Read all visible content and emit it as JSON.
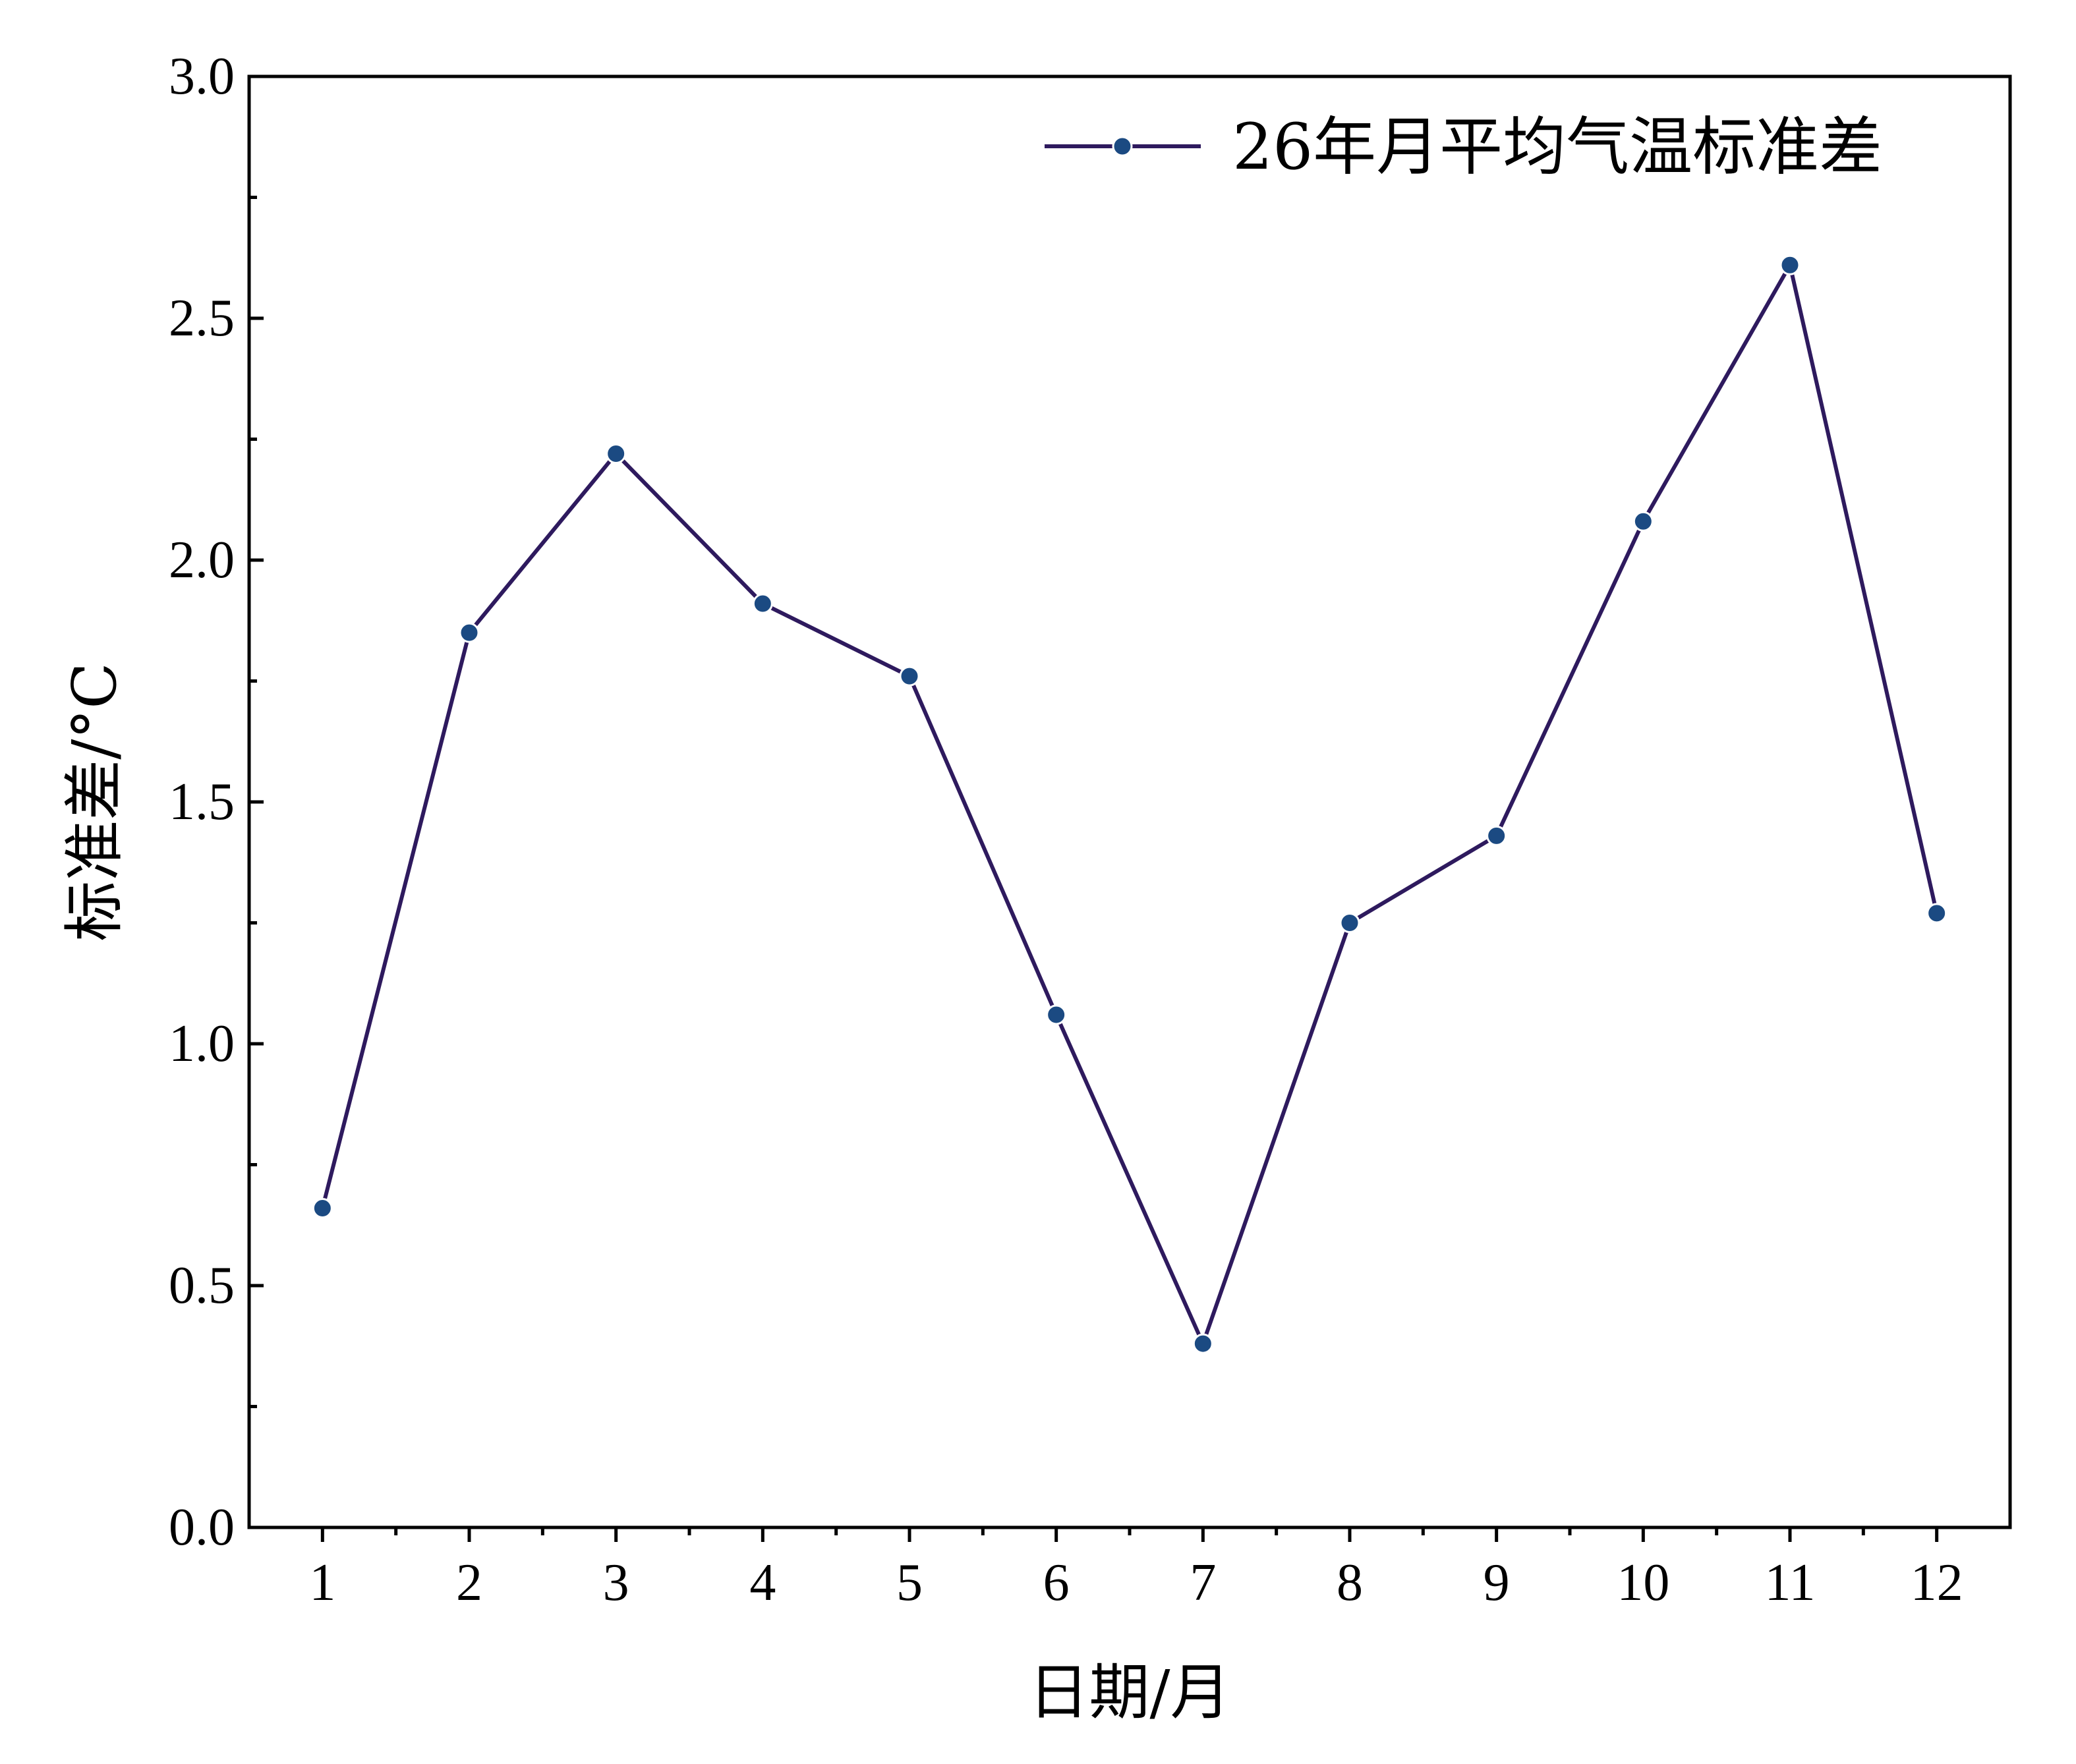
{
  "chart_data": {
    "type": "line",
    "title": "",
    "xlabel": "日期/月",
    "ylabel": "标准差/°C",
    "categories": [
      "1",
      "2",
      "3",
      "4",
      "5",
      "6",
      "7",
      "8",
      "9",
      "10",
      "11",
      "12"
    ],
    "x": [
      1,
      2,
      3,
      4,
      5,
      6,
      7,
      8,
      9,
      10,
      11,
      12
    ],
    "xlim": [
      0.5,
      12.5
    ],
    "ylim": [
      0,
      3.0
    ],
    "yticks": [
      "0.0",
      "0.5",
      "1.0",
      "1.5",
      "2.0",
      "2.5",
      "3.0"
    ],
    "series": [
      {
        "name": "26年月平均气温标准差",
        "values": [
          0.66,
          1.85,
          2.22,
          1.91,
          1.76,
          1.06,
          0.38,
          1.25,
          1.43,
          2.08,
          2.61,
          1.27
        ],
        "line_color": "#2e1a5e",
        "marker_color": "#1b4a82"
      }
    ],
    "legend": {
      "position": "top-right",
      "labels": [
        "26年月平均气温标准差"
      ]
    },
    "grid": false
  }
}
